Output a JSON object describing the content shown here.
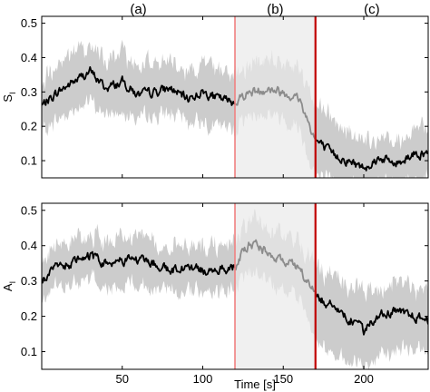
{
  "chart_data": [
    {
      "type": "line",
      "ylabel": "S",
      "ylabel_sub": "I",
      "xlabel": "",
      "xlim": [
        0,
        240
      ],
      "ylim": [
        0.05,
        0.52
      ],
      "yticks": [
        {
          "value": 0.1,
          "label": "0.1"
        },
        {
          "value": 0.2,
          "label": "0.2"
        },
        {
          "value": 0.3,
          "label": "0.3"
        },
        {
          "value": 0.4,
          "label": "0.4"
        },
        {
          "value": 0.5,
          "label": "0.5"
        }
      ],
      "xticks": [
        50,
        100,
        150,
        200
      ],
      "xtick_labels": [],
      "grid": false,
      "phase_labels": [
        {
          "x": 60,
          "label": "(a)"
        },
        {
          "x": 145,
          "label": "(b)"
        },
        {
          "x": 205,
          "label": "(c)"
        }
      ],
      "shaded_region": {
        "x0": 120,
        "x1": 170,
        "color": "#f0f0f0"
      },
      "vlines": [
        {
          "x": 120,
          "color": "#f08080"
        },
        {
          "x": 170,
          "color": "#c00000"
        }
      ],
      "series": [
        {
          "color_pre": "#000000",
          "color_mid": "#8c8c8c",
          "color_post": "#000000",
          "band_color": "#cccccc",
          "band_color_mid": "#e0e0e0",
          "x": [
            0,
            10,
            20,
            30,
            40,
            50,
            60,
            70,
            80,
            90,
            100,
            110,
            120,
            125,
            130,
            140,
            150,
            160,
            165,
            170,
            180,
            190,
            200,
            210,
            220,
            230,
            240
          ],
          "y": [
            0.26,
            0.3,
            0.33,
            0.36,
            0.31,
            0.33,
            0.29,
            0.3,
            0.31,
            0.28,
            0.3,
            0.28,
            0.27,
            0.29,
            0.3,
            0.31,
            0.3,
            0.28,
            0.22,
            0.16,
            0.12,
            0.1,
            0.08,
            0.11,
            0.09,
            0.12,
            0.12
          ],
          "band_low": [
            0.18,
            0.22,
            0.25,
            0.27,
            0.23,
            0.25,
            0.22,
            0.23,
            0.24,
            0.21,
            0.22,
            0.2,
            0.19,
            0.22,
            0.23,
            0.24,
            0.22,
            0.2,
            0.12,
            0.06,
            0.04,
            0.03,
            0.02,
            0.04,
            0.03,
            0.05,
            0.05
          ],
          "band_high": [
            0.33,
            0.38,
            0.41,
            0.44,
            0.39,
            0.41,
            0.37,
            0.38,
            0.39,
            0.36,
            0.38,
            0.36,
            0.35,
            0.37,
            0.38,
            0.4,
            0.39,
            0.36,
            0.31,
            0.26,
            0.22,
            0.19,
            0.16,
            0.18,
            0.16,
            0.19,
            0.19
          ]
        }
      ]
    },
    {
      "type": "line",
      "ylabel": "A",
      "ylabel_sub": "I",
      "xlabel": "Time [s]",
      "xlim": [
        0,
        240
      ],
      "ylim": [
        0.05,
        0.52
      ],
      "yticks": [
        {
          "value": 0.1,
          "label": "0.1"
        },
        {
          "value": 0.2,
          "label": "0.2"
        },
        {
          "value": 0.3,
          "label": "0.3"
        },
        {
          "value": 0.4,
          "label": "0.4"
        },
        {
          "value": 0.5,
          "label": "0.5"
        }
      ],
      "xticks": [
        50,
        100,
        150,
        200
      ],
      "xtick_labels": [
        "50",
        "100",
        "150",
        "200"
      ],
      "grid": false,
      "phase_labels": [],
      "shaded_region": {
        "x0": 120,
        "x1": 170,
        "color": "#f0f0f0"
      },
      "vlines": [
        {
          "x": 120,
          "color": "#f08080"
        },
        {
          "x": 170,
          "color": "#c00000"
        }
      ],
      "series": [
        {
          "color_pre": "#000000",
          "color_mid": "#8c8c8c",
          "color_post": "#000000",
          "band_color": "#cccccc",
          "band_color_mid": "#e0e0e0",
          "x": [
            0,
            10,
            20,
            30,
            40,
            50,
            60,
            70,
            80,
            90,
            100,
            110,
            120,
            125,
            130,
            140,
            150,
            160,
            165,
            170,
            180,
            190,
            200,
            210,
            220,
            230,
            240
          ],
          "y": [
            0.3,
            0.34,
            0.35,
            0.37,
            0.35,
            0.36,
            0.36,
            0.35,
            0.33,
            0.34,
            0.33,
            0.33,
            0.34,
            0.38,
            0.41,
            0.38,
            0.36,
            0.33,
            0.3,
            0.26,
            0.23,
            0.2,
            0.16,
            0.21,
            0.21,
            0.2,
            0.19
          ],
          "band_low": [
            0.24,
            0.28,
            0.29,
            0.3,
            0.28,
            0.29,
            0.29,
            0.28,
            0.27,
            0.27,
            0.27,
            0.27,
            0.28,
            0.31,
            0.33,
            0.3,
            0.28,
            0.25,
            0.2,
            0.14,
            0.1,
            0.08,
            0.06,
            0.09,
            0.1,
            0.11,
            0.11
          ],
          "band_high": [
            0.36,
            0.4,
            0.41,
            0.43,
            0.41,
            0.42,
            0.42,
            0.41,
            0.4,
            0.4,
            0.4,
            0.4,
            0.41,
            0.45,
            0.48,
            0.45,
            0.43,
            0.4,
            0.37,
            0.34,
            0.31,
            0.29,
            0.26,
            0.29,
            0.29,
            0.28,
            0.27
          ]
        }
      ]
    }
  ]
}
